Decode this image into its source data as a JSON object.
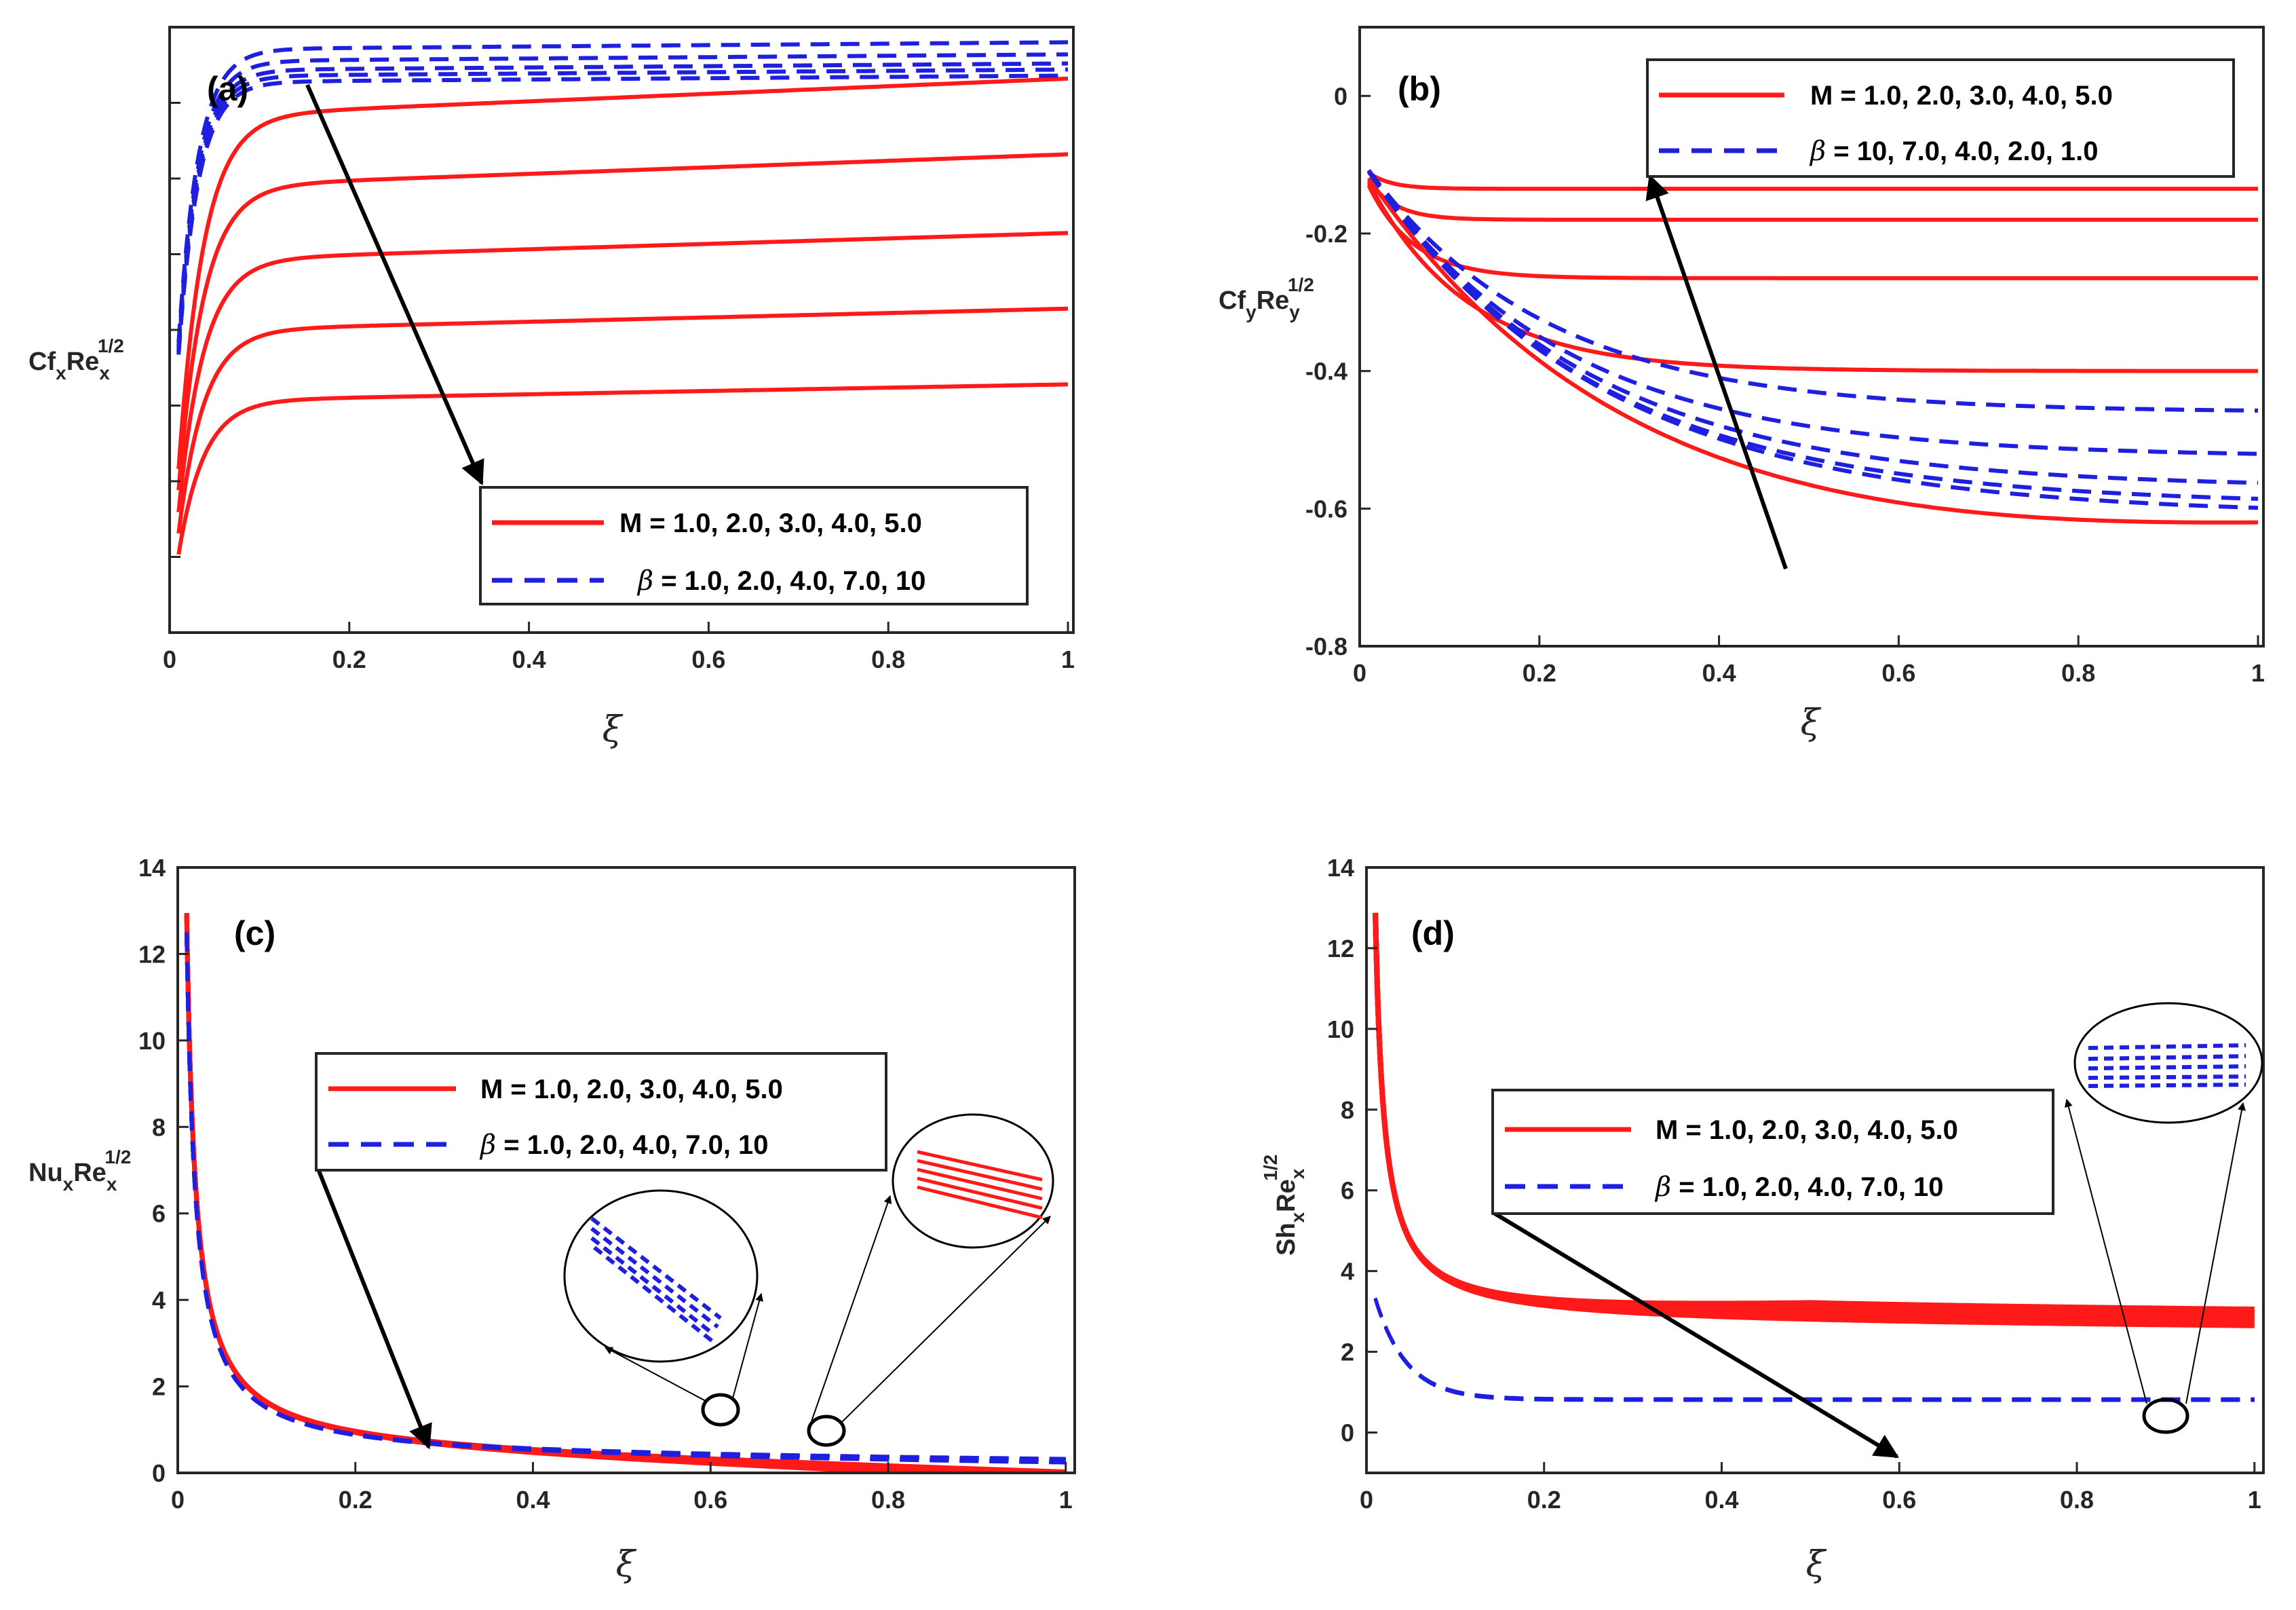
{
  "colors": {
    "m_series": "#ff1a1a",
    "beta_series": "#1f1fe0",
    "axis": "#262626",
    "arrow": "#000000"
  },
  "legend": {
    "m_label": "M = 1.0, 2.0, 3.0, 4.0, 5.0",
    "beta_symbol": "β",
    "beta_rest": " = 1.0, 2.0, 4.0, 7.0, 10",
    "beta_rest_b": " = 10, 7.0, 4.0, 2.0, 1.0"
  },
  "chart_data": [
    {
      "panel": "(a)",
      "type": "line",
      "xlabel": "ξ",
      "ylabel": {
        "main": "Cf",
        "sub": "x",
        "mid": "Re",
        "sub2": "x",
        "sup": "1/2"
      },
      "xlim": [
        0,
        1
      ],
      "ylim": [
        0,
        1
      ],
      "xticks": [
        "0",
        "0.2",
        "0.4",
        "0.6",
        "0.8",
        "1"
      ],
      "yticks": [],
      "legend_position": "bottom-right",
      "annotations": [
        "arrow: M increasing / β increasing, curves decrease"
      ],
      "series_M": [
        {
          "name": "M = 1.0",
          "plateau": 0.915
        },
        {
          "name": "M = 2.0",
          "plateau": 0.79
        },
        {
          "name": "M = 3.0",
          "plateau": 0.66
        },
        {
          "name": "M = 4.0",
          "plateau": 0.535
        },
        {
          "name": "M = 5.0",
          "plateau": 0.41
        }
      ],
      "series_beta": [
        {
          "name": "β = 1.0",
          "plateau": 0.975
        },
        {
          "name": "β = 2.0",
          "plateau": 0.955
        },
        {
          "name": "β = 4.0",
          "plateau": 0.94
        },
        {
          "name": "β = 7.0",
          "plateau": 0.93
        },
        {
          "name": "β = 10",
          "plateau": 0.92
        }
      ]
    },
    {
      "panel": "(b)",
      "type": "line",
      "xlabel": "ξ",
      "ylabel": {
        "main": "Cf",
        "sub": "y",
        "mid": "Re",
        "sub2": "y",
        "sup": "1/2"
      },
      "xlim": [
        0,
        1
      ],
      "ylim": [
        -0.8,
        0.1
      ],
      "xticks": [
        "0",
        "0.2",
        "0.4",
        "0.6",
        "0.8",
        "1"
      ],
      "yticks": [
        "0",
        "-0.2",
        "-0.4",
        "-0.6",
        "-0.8"
      ],
      "legend_position": "top-right",
      "annotations": [
        "arrow: M and β increasing direction"
      ],
      "series_M": [
        {
          "name": "M = 5.0",
          "end": -0.155
        },
        {
          "name": "M = 4.0",
          "end": -0.2
        },
        {
          "name": "M = 3.0",
          "end": -0.28
        },
        {
          "name": "M = 2.0",
          "end": -0.41
        },
        {
          "name": "M = 1.0",
          "end": -0.635
        }
      ],
      "series_beta": [
        {
          "name": "β = 1.0",
          "end": -0.46
        },
        {
          "name": "β = 2.0",
          "end": -0.525
        },
        {
          "name": "β = 4.0",
          "end": -0.57
        },
        {
          "name": "β = 7.0",
          "end": -0.595
        },
        {
          "name": "β = 10",
          "end": -0.61
        }
      ]
    },
    {
      "panel": "(c)",
      "type": "line",
      "xlabel": "ξ",
      "ylabel": {
        "main": "Nu",
        "sub": "x",
        "mid": "Re",
        "sub2": "x",
        "sup": "1/2"
      },
      "xlim": [
        0,
        1
      ],
      "ylim": [
        0,
        14
      ],
      "xticks": [
        "0",
        "0.2",
        "0.4",
        "0.6",
        "0.8",
        "1"
      ],
      "yticks": [
        "0",
        "2",
        "4",
        "6",
        "8",
        "10",
        "12",
        "14"
      ],
      "legend_position": "center",
      "annotations": [
        "zoom insets near ξ = 0.6 and ξ = 0.72"
      ],
      "series_M": [
        {
          "name": "M = 1.0 to 5.0",
          "start": 12.5,
          "end": 0.45
        }
      ],
      "series_beta": [
        {
          "name": "β = 1.0 to 10",
          "start": 12.2,
          "end": 0.65
        }
      ]
    },
    {
      "panel": "(d)",
      "type": "line",
      "xlabel": "ξ",
      "ylabel": {
        "main": "Sh",
        "sub": "x",
        "mid": "Re",
        "sub2": "x",
        "sup": "1/2"
      },
      "xlim": [
        0,
        1
      ],
      "ylim": [
        -1,
        14
      ],
      "xticks": [
        "0",
        "0.2",
        "0.4",
        "0.6",
        "0.8",
        "1"
      ],
      "yticks": [
        "0",
        "2",
        "4",
        "6",
        "8",
        "10",
        "12",
        "14"
      ],
      "legend_position": "center",
      "annotations": [
        "zoom inset near ξ = 0.9"
      ],
      "series_M": [
        {
          "name": "M = 1.0 to 5.0",
          "start": 12.7,
          "end": 2.7
        }
      ],
      "series_beta": [
        {
          "name": "β = 1.0 to 10",
          "start": 3.3,
          "end": 0.82
        }
      ]
    }
  ]
}
